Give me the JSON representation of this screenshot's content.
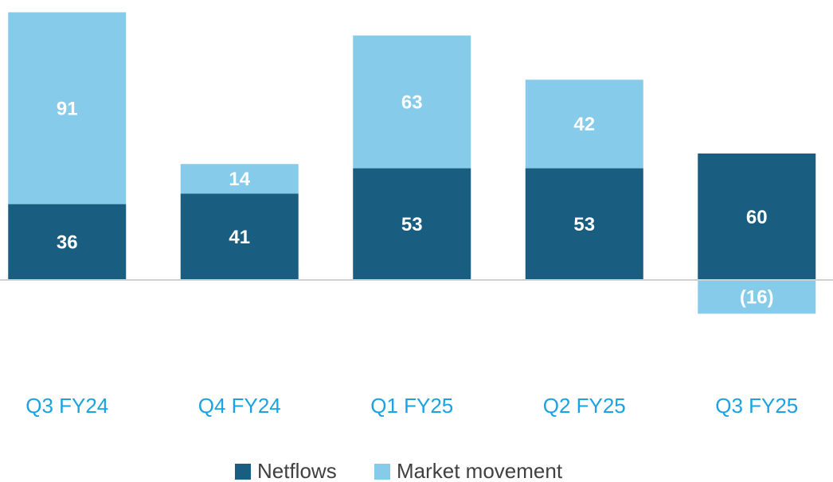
{
  "chart_data": {
    "type": "stacked_bar",
    "categories": [
      "Q3 FY24",
      "Q4 FY24",
      "Q1 FY25",
      "Q2 FY25",
      "Q3 FY25"
    ],
    "series": [
      {
        "name": "Netflows",
        "color": "#195e80",
        "values": [
          36,
          41,
          53,
          53,
          60
        ]
      },
      {
        "name": "Market movement",
        "color": "#87cbea",
        "values": [
          91,
          14,
          63,
          42,
          -16
        ],
        "value_labels": [
          "91",
          "14",
          "63",
          "42",
          "(16)"
        ]
      }
    ],
    "ylim": [
      -40,
      130
    ]
  }
}
